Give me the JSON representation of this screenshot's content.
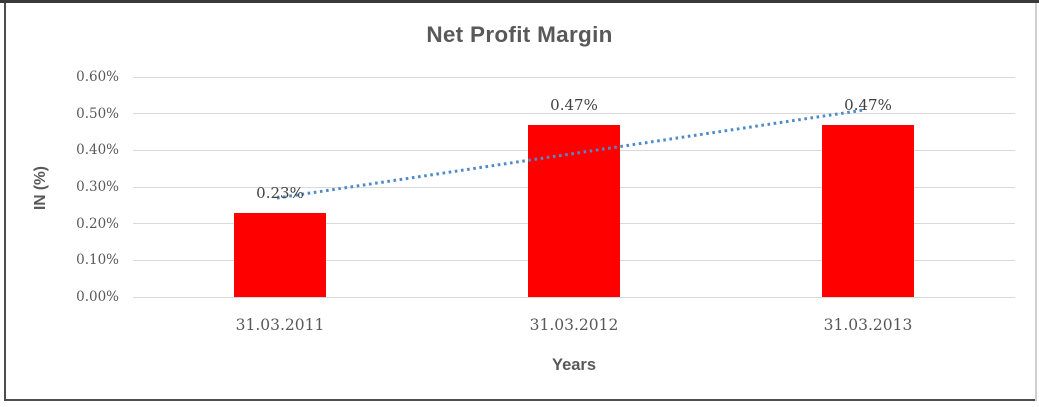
{
  "window": {
    "background": "#ffffff",
    "frame_border_dark": "#3a3a3a",
    "frame_border_light": "#cfcfcf"
  },
  "chart_data": {
    "type": "bar",
    "title": "Net Profit Margin",
    "xlabel": "Years",
    "ylabel": "IN (%)",
    "categories": [
      "31.03.2011",
      "31.03.2012",
      "31.03.2013"
    ],
    "values": [
      0.23,
      0.47,
      0.47
    ],
    "data_labels": [
      "0.23%",
      "0.47%",
      "0.47%"
    ],
    "ylim": [
      0,
      0.6
    ],
    "ytick_values": [
      0.6,
      0.5,
      0.4,
      0.3,
      0.2,
      0.1,
      0.0
    ],
    "ytick_labels": [
      "0.60%",
      "0.50%",
      "0.40%",
      "0.30%",
      "0.20%",
      "0.10%",
      "0.00%"
    ],
    "grid": true,
    "legend": "none",
    "bar_color": "#ff0000",
    "gridline_color": "#d9d9d9",
    "axis_text_color": "#595959",
    "data_label_color": "#404040",
    "trendline": {
      "name": "linear-trend",
      "style": "dotted",
      "color": "#4f8bc9",
      "start_value": 0.27,
      "end_value": 0.51
    }
  }
}
